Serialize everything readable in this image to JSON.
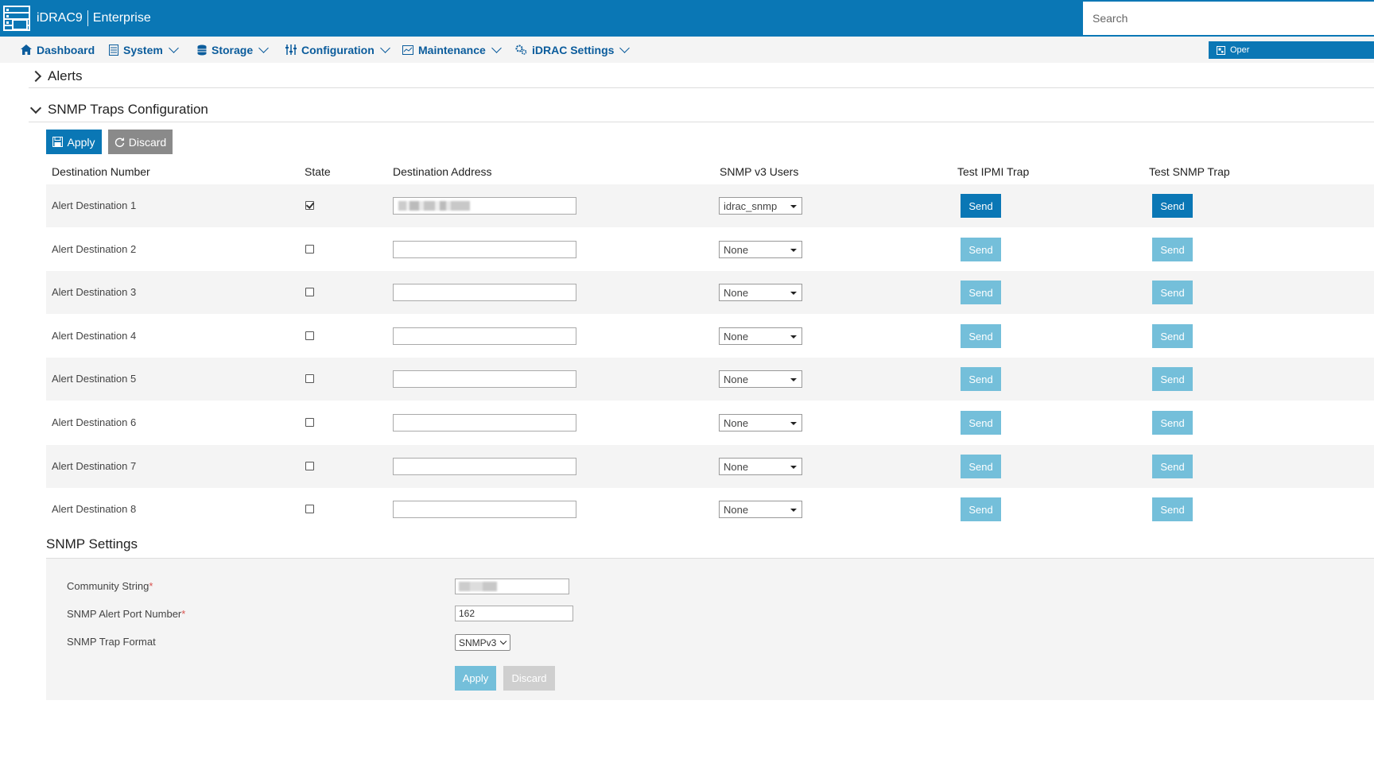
{
  "header": {
    "product": "iDRAC9",
    "edition": "Enterprise",
    "search_placeholder": "Search"
  },
  "nav": [
    {
      "label": "Dashboard",
      "icon": "home-icon"
    },
    {
      "label": "System",
      "icon": "server-icon"
    },
    {
      "label": "Storage",
      "icon": "database-icon"
    },
    {
      "label": "Configuration",
      "icon": "sliders-icon"
    },
    {
      "label": "Maintenance",
      "icon": "monitor-icon"
    },
    {
      "label": "iDRAC Settings",
      "icon": "gears-icon"
    }
  ],
  "open_button": "Oper",
  "sections": {
    "alerts": "Alerts",
    "traps": "SNMP Traps Configuration"
  },
  "toolbar": {
    "apply": "Apply",
    "discard": "Discard"
  },
  "table": {
    "headers": [
      "Destination Number",
      "State",
      "Destination Address",
      "SNMP v3 Users",
      "Test IPMI Trap",
      "Test SNMP Trap"
    ],
    "send_label": "Send",
    "rows": [
      {
        "label": "Alert Destination 1",
        "state": true,
        "user": "idrac_snmp",
        "address_obscured": true
      },
      {
        "label": "Alert Destination 2",
        "state": false,
        "user": "None"
      },
      {
        "label": "Alert Destination 3",
        "state": false,
        "user": "None"
      },
      {
        "label": "Alert Destination 4",
        "state": false,
        "user": "None"
      },
      {
        "label": "Alert Destination 5",
        "state": false,
        "user": "None"
      },
      {
        "label": "Alert Destination 6",
        "state": false,
        "user": "None"
      },
      {
        "label": "Alert Destination 7",
        "state": false,
        "user": "None"
      },
      {
        "label": "Alert Destination 8",
        "state": false,
        "user": "None"
      }
    ]
  },
  "settings": {
    "title": "SNMP Settings",
    "community_label": "Community String",
    "port_label": "SNMP Alert Port Number",
    "port_value": "162",
    "format_label": "SNMP Trap Format",
    "format_value": "SNMPv3",
    "required_mark": "*",
    "apply": "Apply",
    "discard": "Discard"
  },
  "colors": {
    "brand": "#0a77b5",
    "nav_text": "#0b5c9c",
    "disabled_send": "#74bfda"
  }
}
